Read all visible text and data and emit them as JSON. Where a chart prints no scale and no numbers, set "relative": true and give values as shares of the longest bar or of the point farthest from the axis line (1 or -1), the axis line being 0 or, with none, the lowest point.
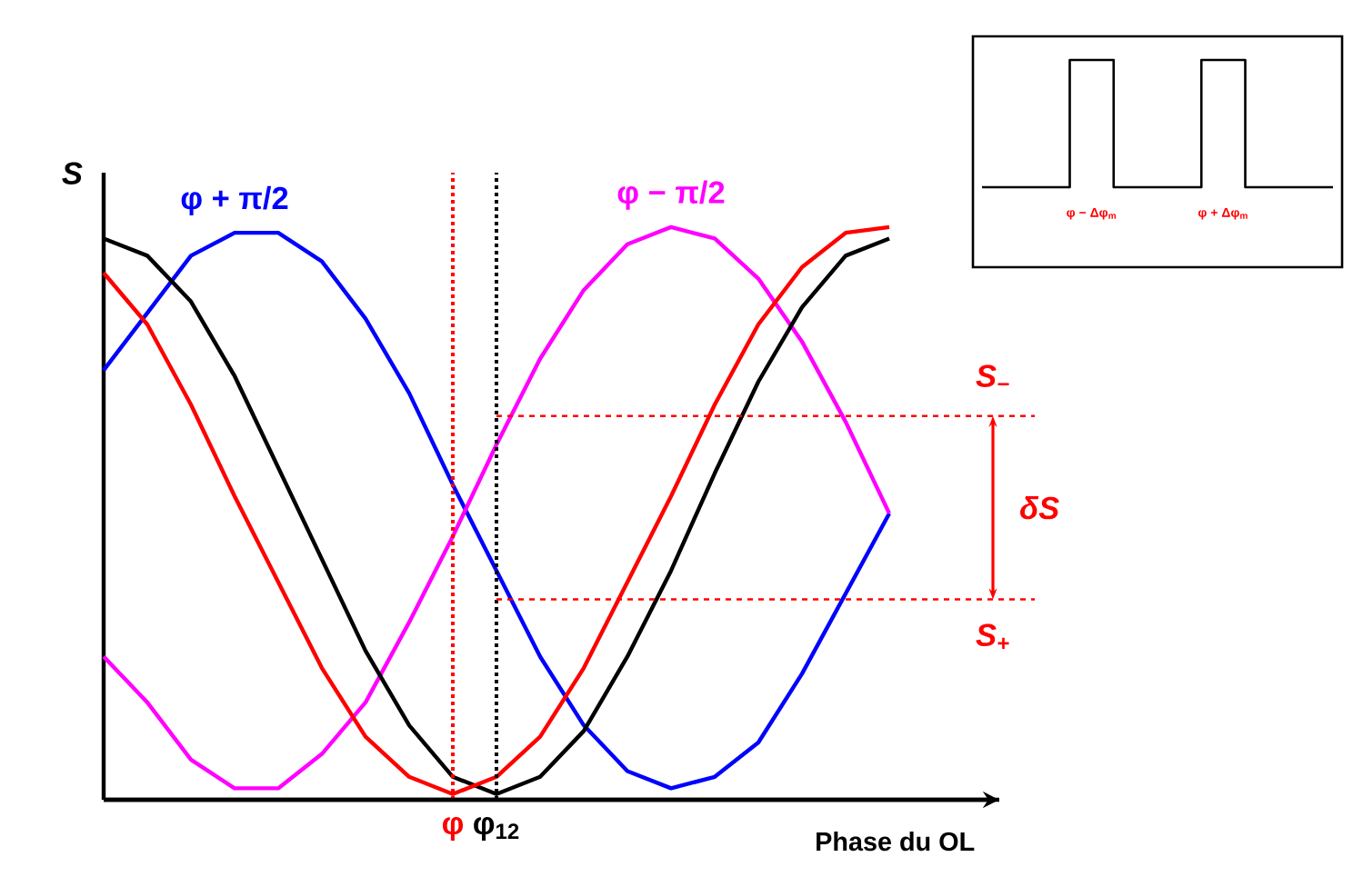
{
  "chart_data": [
    {
      "type": "line",
      "relative": true,
      "xlabel": "Phase du OL",
      "ylabel": "S",
      "categories": [
        null,
        null,
        null,
        null,
        null,
        null,
        null,
        null,
        "φ",
        "φ$_{12}$",
        null,
        null,
        null,
        null,
        null,
        null,
        null,
        null,
        null
      ],
      "series": [
        {
          "name": "φ + π/2",
          "color": "#0000ff",
          "values": [
            0.75,
            0.85,
            0.95,
            0.99,
            0.99,
            0.94,
            0.84,
            0.71,
            0.55,
            0.4,
            0.25,
            0.13,
            0.05,
            0.02,
            0.04,
            0.1,
            0.22,
            0.36,
            0.5
          ]
        },
        {
          "name": "φ − π/2",
          "color": "#ff00ff",
          "values": [
            0.25,
            0.17,
            0.07,
            0.02,
            0.02,
            0.08,
            0.17,
            0.31,
            0.46,
            0.62,
            0.77,
            0.89,
            0.97,
            1.0,
            0.98,
            0.91,
            0.8,
            0.66,
            0.5
          ]
        },
        {
          "color": "#000000",
          "values": [
            0.98,
            0.95,
            0.87,
            0.74,
            0.58,
            0.42,
            0.26,
            0.13,
            0.04,
            0.01,
            0.04,
            0.12,
            0.25,
            0.4,
            0.57,
            0.73,
            0.86,
            0.95,
            0.98
          ]
        },
        {
          "color": "#ff0000",
          "values": [
            0.92,
            0.83,
            0.69,
            0.53,
            0.38,
            0.23,
            0.11,
            0.04,
            0.01,
            0.04,
            0.11,
            0.23,
            0.38,
            0.53,
            0.69,
            0.83,
            0.93,
            0.99,
            1.0
          ]
        }
      ],
      "ref_lines": [
        {
          "axis": "x",
          "value": "φ",
          "color": "#ff0000",
          "line_style": "dotted"
        },
        {
          "axis": "x",
          "value": "φ$_{12}$",
          "color": "#000000",
          "line_style": "dotted"
        },
        {
          "axis": "y",
          "value": 0.67,
          "label": "S$_{−}$",
          "color": "#ff0000",
          "line_style": "dashed"
        },
        {
          "axis": "y",
          "value": 0.35,
          "label": "S$_{+}$",
          "color": "#ff0000",
          "line_style": "dashed"
        }
      ],
      "annotations": [
        "δS"
      ]
    },
    {
      "type": "step",
      "relative": true,
      "categories": [
        null,
        null,
        null,
        null,
        null,
        null,
        null,
        null,
        null
      ],
      "series": [
        {
          "color": "#000000",
          "values": [
            0,
            0,
            1,
            0,
            0,
            1,
            0,
            0,
            0
          ]
        }
      ],
      "annotations": [
        "φ − Δφ$_{m}$",
        "φ + Δφ$_{m}$"
      ]
    }
  ]
}
